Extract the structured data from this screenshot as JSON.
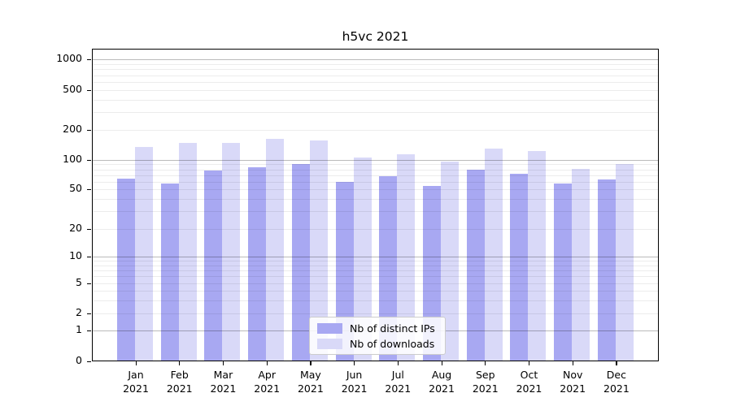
{
  "chart_data": {
    "type": "bar",
    "title": "h5vc 2021",
    "categories": [
      "Jan 2021",
      "Feb 2021",
      "Mar 2021",
      "Apr 2021",
      "May 2021",
      "Jun 2021",
      "Jul 2021",
      "Aug 2021",
      "Sep 2021",
      "Oct 2021",
      "Nov 2021",
      "Dec 2021"
    ],
    "series": [
      {
        "name": "Nb of distinct IPs",
        "color": "#a8a8f2",
        "values": [
          64,
          57,
          78,
          84,
          91,
          59,
          68,
          54,
          80,
          72,
          57,
          63
        ]
      },
      {
        "name": "Nb of downloads",
        "color": "#d9d9f8",
        "values": [
          136,
          147,
          149,
          162,
          156,
          106,
          114,
          96,
          131,
          124,
          81,
          91
        ]
      }
    ],
    "xlabel": "",
    "ylabel": "",
    "y_scale": "log-like with 0 baseline",
    "y_ticks": [
      0,
      1,
      2,
      5,
      10,
      20,
      50,
      100,
      200,
      500,
      1000
    ],
    "y_minor_gridlines": [
      3,
      4,
      6,
      7,
      8,
      9,
      30,
      40,
      60,
      70,
      80,
      90,
      300,
      400,
      600,
      700,
      800,
      900
    ],
    "ylim": [
      0,
      1300
    ],
    "grid": true,
    "legend_position": "inside bottom-center"
  },
  "colors": {
    "bar_ips": "#a8a8f2",
    "bar_downloads": "#d9d9f8",
    "axis": "#000000",
    "major_grid": "#bfbfbf",
    "minor_grid": "#ececec",
    "legend_border": "#cccccc",
    "background": "#ffffff"
  }
}
